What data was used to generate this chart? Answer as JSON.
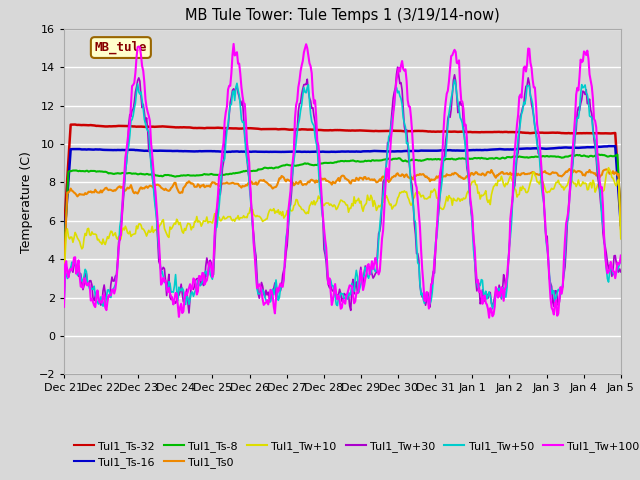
{
  "title": "MB Tule Tower: Tule Temps 1 (3/19/14-now)",
  "ylabel": "Temperature (C)",
  "ylim": [
    -2,
    16
  ],
  "yticks": [
    -2,
    0,
    2,
    4,
    6,
    8,
    10,
    12,
    14,
    16
  ],
  "background_color": "#d8d8d8",
  "plot_bg_color": "#d8d8d8",
  "grid_color": "#ffffff",
  "series": {
    "Tul1_Ts-32": {
      "color": "#cc0000",
      "lw": 1.8
    },
    "Tul1_Ts-16": {
      "color": "#0000cc",
      "lw": 1.8
    },
    "Tul1_Ts-8": {
      "color": "#00bb00",
      "lw": 1.5
    },
    "Tul1_Ts0": {
      "color": "#ee8800",
      "lw": 1.5
    },
    "Tul1_Tw+10": {
      "color": "#dddd00",
      "lw": 1.2
    },
    "Tul1_Tw+30": {
      "color": "#aa00cc",
      "lw": 1.2
    },
    "Tul1_Tw+50": {
      "color": "#00cccc",
      "lw": 1.2
    },
    "Tul1_Tw+100": {
      "color": "#ff00ff",
      "lw": 1.5
    }
  },
  "legend_box": {
    "label": "MB_tule",
    "bg": "#ffffcc",
    "ec": "#996600",
    "fc": "#ffffcc",
    "text_color": "#880000"
  },
  "xtick_labels": [
    "Dec 21",
    "Dec 22",
    "Dec 23",
    "Dec 24",
    "Dec 25",
    "Dec 26",
    "Dec 27",
    "Dec 28",
    "Dec 29",
    "Dec 30",
    "Dec 31",
    "Jan 1",
    "Jan 2",
    "Jan 3",
    "Jan 4",
    "Jan 5"
  ],
  "legend_row1": [
    "Tul1_Ts-32",
    "Tul1_Ts-16",
    "Tul1_Ts-8",
    "Tul1_Ts0",
    "Tul1_Tw+10",
    "Tul1_Tw+30"
  ],
  "legend_row2": [
    "Tul1_Tw+50",
    "Tul1_Tw+100"
  ]
}
